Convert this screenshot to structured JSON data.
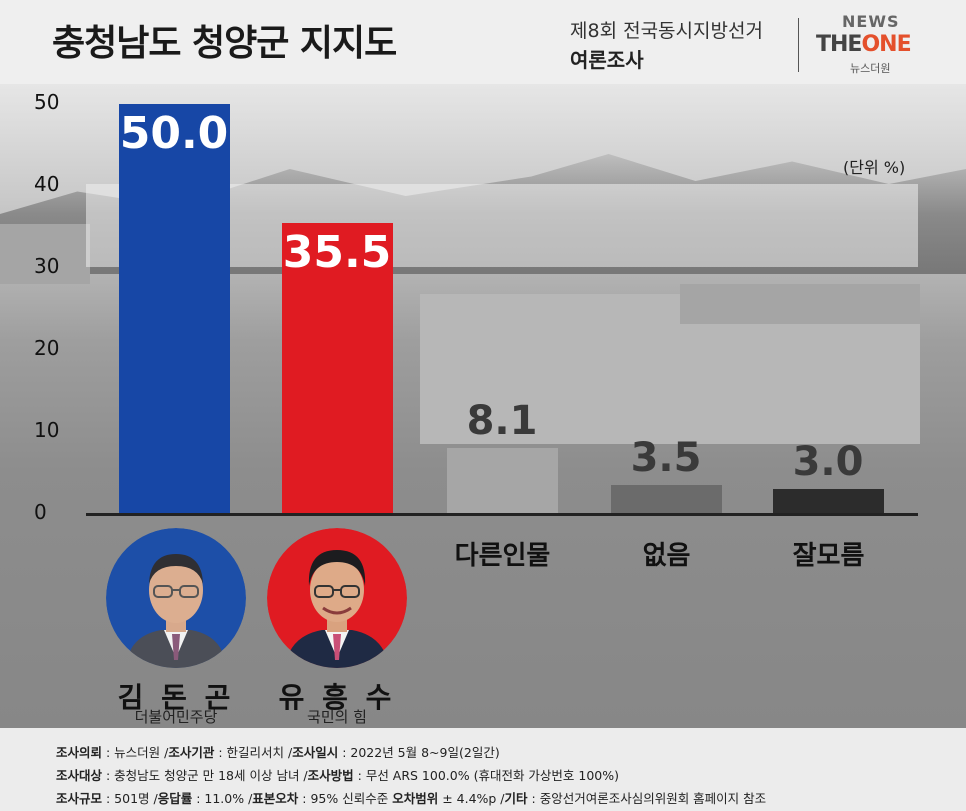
{
  "header": {
    "title": "충청남도 청양군 지지도",
    "subtitle_line1": "제8회 전국동시지방선거",
    "subtitle_line2": "여론조사",
    "logo_news": "NEWS",
    "logo_the": "THE",
    "logo_one": "ONE",
    "logo_korean": "뉴스더원"
  },
  "chart_data": {
    "type": "bar",
    "title": "충청남도 청양군 지지도",
    "unit_label": "(단위 %)",
    "ylim": [
      0,
      50
    ],
    "yticks": [
      0,
      10,
      20,
      30,
      40,
      50
    ],
    "categories": [
      "김돈곤",
      "유흥수",
      "다른인물",
      "없음",
      "잘모름"
    ],
    "value_labels": [
      "50.0",
      "35.5",
      "8.1",
      "3.5",
      "3.0"
    ],
    "values": [
      50.0,
      35.5,
      8.1,
      3.5,
      3.0
    ],
    "colors": [
      "#1747a6",
      "#e01b22",
      "#a6a6a6",
      "#6b6b6b",
      "#2c2c2c"
    ],
    "category_labels": [
      "",
      "",
      "다른인물",
      "없음",
      "잘모름"
    ]
  },
  "candidates": [
    {
      "name": "김 돈 곤",
      "party": "더불어민주당",
      "color": "#1d4fa8"
    },
    {
      "name": "유 흥 수",
      "party": "국민의 힘",
      "color": "#e01b22"
    }
  ],
  "footer": {
    "line1": [
      {
        "k": "조사의뢰",
        "v": " : 뉴스더원 /"
      },
      {
        "k": "조사기관",
        "v": " : 한길리서치 /"
      },
      {
        "k": "조사일시",
        "v": " : 2022년 5월 8~9일(2일간)"
      }
    ],
    "line2": [
      {
        "k": "조사대상",
        "v": " : 충청남도 청양군 만 18세 이상 남녀 /"
      },
      {
        "k": "조사방법",
        "v": " : 무선 ARS 100.0% (휴대전화 가상번호 100%)"
      }
    ],
    "line3": [
      {
        "k": "조사규모",
        "v": " : 501명 /"
      },
      {
        "k": "응답률",
        "v": " : 11.0% /"
      },
      {
        "k": "표본오차",
        "v": " : 95% 신뢰수준 "
      },
      {
        "k": "오차범위",
        "v": " ± 4.4%p /"
      },
      {
        "k": "기타",
        "v": " : 중앙선거여론조사심의위원회 홈페이지 참조"
      }
    ]
  }
}
